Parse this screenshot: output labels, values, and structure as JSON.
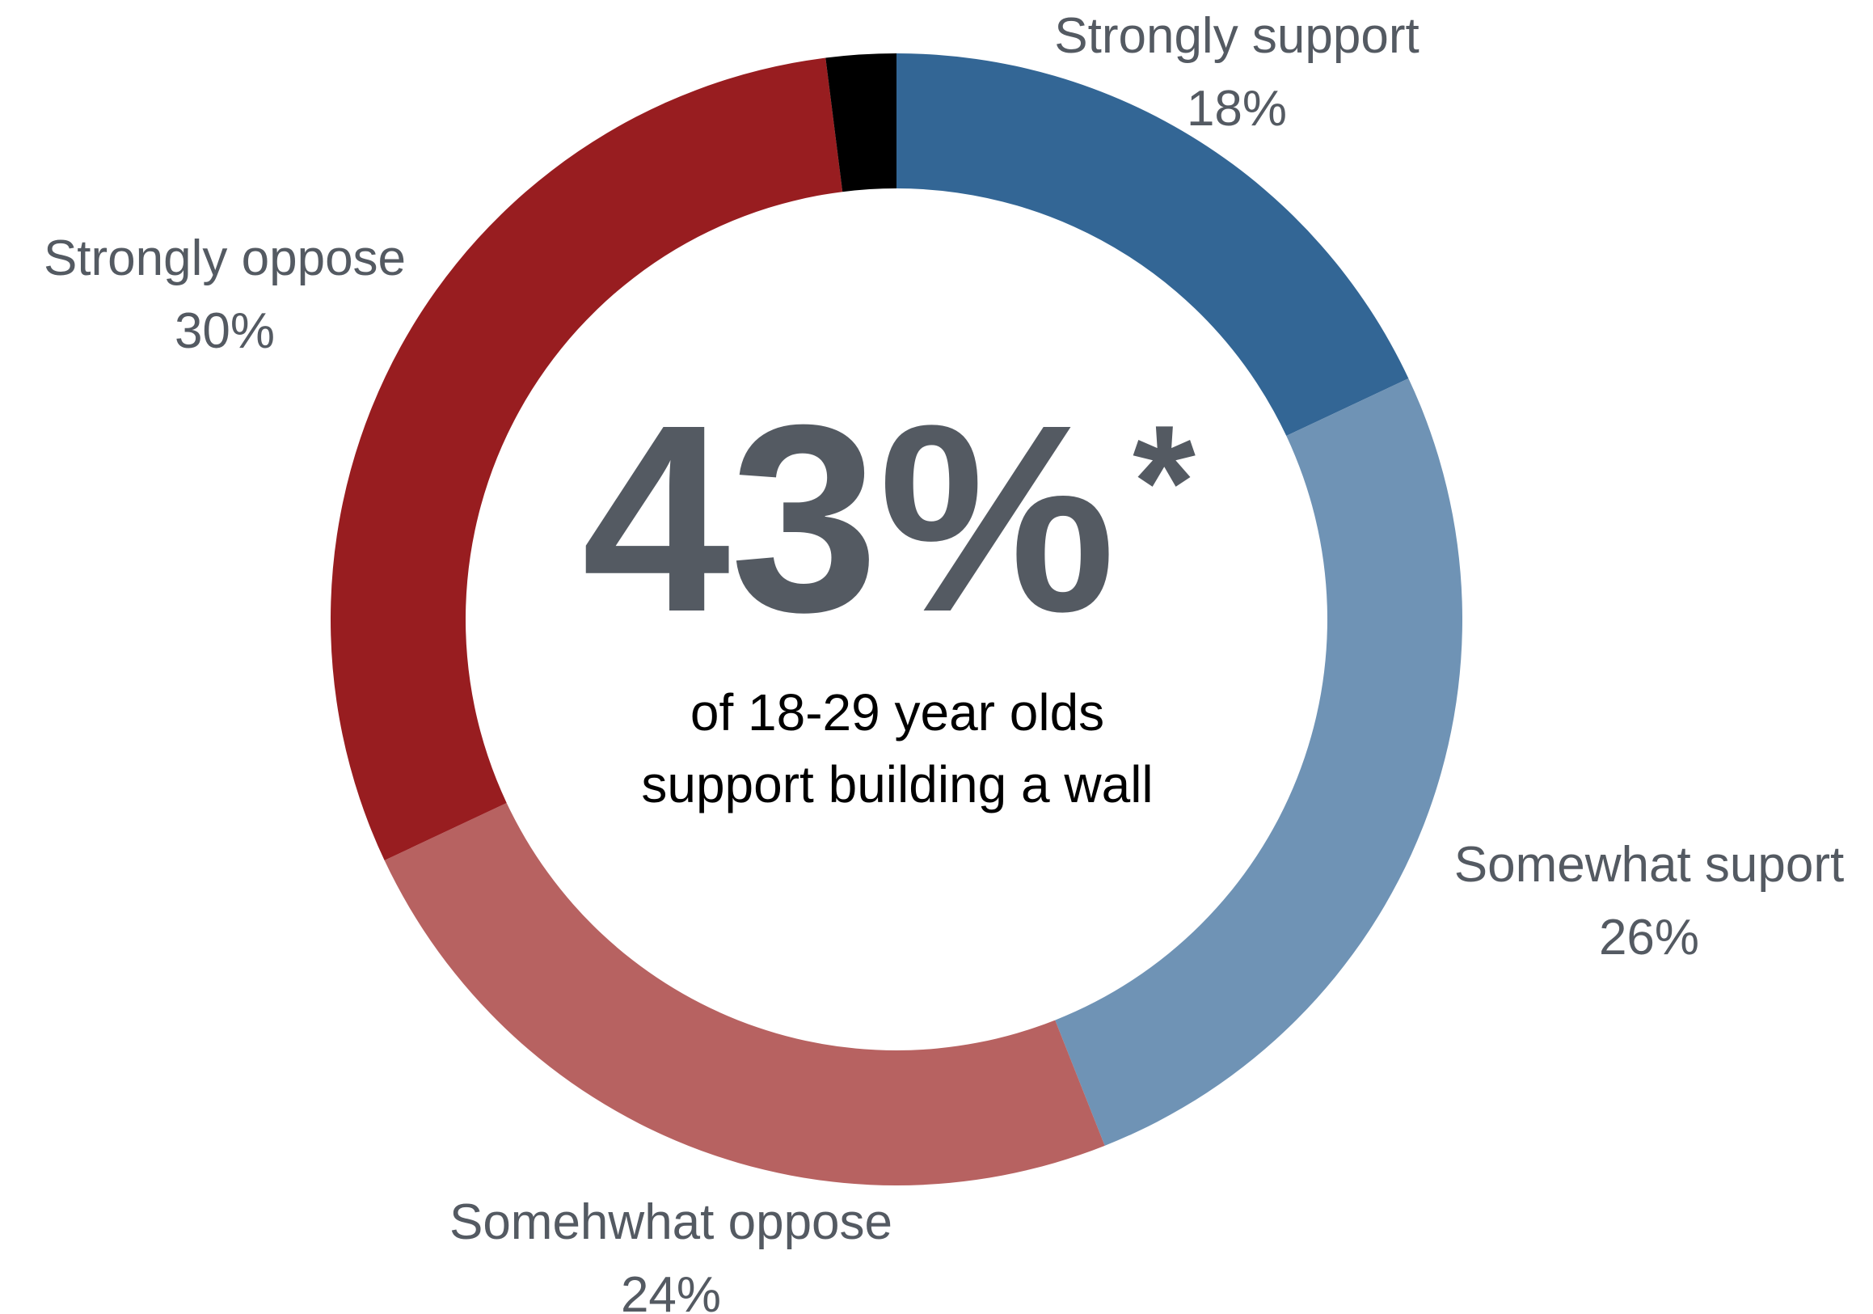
{
  "chart_data": {
    "type": "pie",
    "variant": "donut",
    "start_angle_deg": 0,
    "direction": "clockwise",
    "slices": [
      {
        "label": "Strongly support",
        "value": 18,
        "value_text": "18%",
        "color": "#336695"
      },
      {
        "label": "Somewhat suport",
        "value": 26,
        "value_text": "26%",
        "color": "#6f93b5"
      },
      {
        "label": "Somehwhat oppose",
        "value": 24,
        "value_text": "24%",
        "color": "#b76261"
      },
      {
        "label": "Strongly oppose",
        "value": 30,
        "value_text": "30%",
        "color": "#981d20"
      },
      {
        "label": "",
        "value": 2,
        "value_text": "",
        "color": "#000000"
      }
    ],
    "center": {
      "stat": "43%",
      "mark": "*",
      "caption_lines": [
        "of 18-29 year olds",
        "support building a wall"
      ]
    }
  },
  "colors": {
    "label_text": "#545a62",
    "stat_text": "#545a62",
    "caption_text": "#000000",
    "background": "#ffffff"
  }
}
